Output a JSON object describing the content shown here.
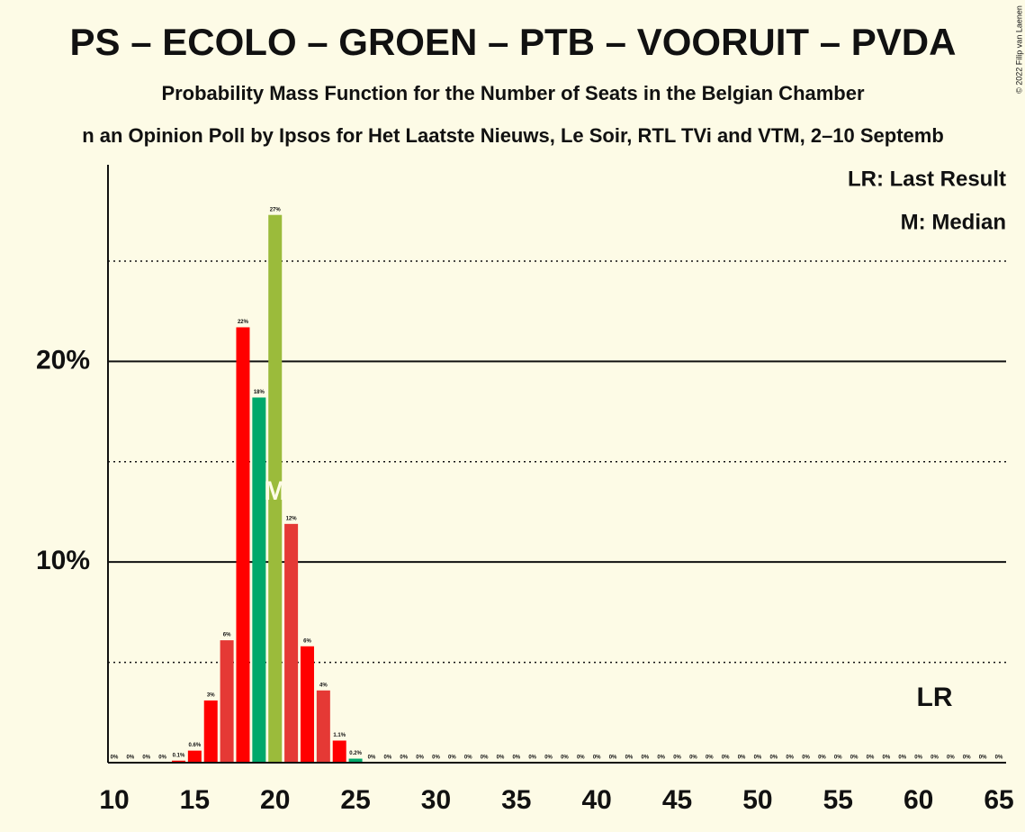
{
  "chart_data": {
    "type": "bar",
    "title": "PS – ECOLO – GROEN – PTB – VOORUIT – PVDA",
    "subtitle": "Probability Mass Function for the Number of Seats in the Belgian Chamber",
    "subtitle2": "n an Opinion Poll by Ipsos for Het Laatste Nieuws, Le Soir, RTL TVi and VTM, 2–10 Septemb",
    "copyright": "© 2022 Filip van Laenen",
    "legend": [
      "LR: Last Result",
      "M: Median"
    ],
    "x": [
      10,
      11,
      12,
      13,
      14,
      15,
      16,
      17,
      18,
      19,
      20,
      21,
      22,
      23,
      24,
      25,
      26,
      27,
      28,
      29,
      30,
      31,
      32,
      33,
      34,
      35,
      36,
      37,
      38,
      39,
      40,
      41,
      42,
      43,
      44,
      45,
      46,
      47,
      48,
      49,
      50,
      51,
      52,
      53,
      54,
      55,
      56,
      57,
      58,
      59,
      60,
      61,
      62,
      63,
      64,
      65
    ],
    "values": [
      0,
      0,
      0,
      0,
      0.1,
      0.6,
      3.1,
      6.1,
      21.7,
      18.2,
      27.3,
      11.9,
      5.8,
      3.6,
      1.1,
      0.2,
      0,
      0,
      0,
      0,
      0,
      0,
      0,
      0,
      0,
      0,
      0,
      0,
      0,
      0,
      0,
      0,
      0,
      0,
      0,
      0,
      0,
      0,
      0,
      0,
      0,
      0,
      0,
      0,
      0,
      0,
      0,
      0,
      0,
      0,
      0,
      0,
      0,
      0,
      0,
      0
    ],
    "value_labels": [
      "0%",
      "0%",
      "0%",
      "0%",
      "0.1%",
      "0.6%",
      "3%",
      "6%",
      "22%",
      "18%",
      "27%",
      "12%",
      "6%",
      "4%",
      "1.1%",
      "0.2%",
      "0%",
      "0%",
      "0%",
      "0%",
      "0%",
      "0%",
      "0%",
      "0%",
      "0%",
      "0%",
      "0%",
      "0%",
      "0%",
      "0%",
      "0%",
      "0%",
      "0%",
      "0%",
      "0%",
      "0%",
      "0%",
      "0%",
      "0%",
      "0%",
      "0%",
      "0%",
      "0%",
      "0%",
      "0%",
      "0%",
      "0%",
      "0%",
      "0%",
      "0%",
      "0%",
      "0%",
      "0%",
      "0%",
      "0%",
      "0%"
    ],
    "colors": [
      "#ff0000",
      "#e53935",
      "#ff0000",
      "#e53935",
      "#ff0000",
      "#ff0000",
      "#ff0000",
      "#e53935",
      "#ff0000",
      "#00a86b",
      "#9bbb3b",
      "#e53935",
      "#ff0000",
      "#e53935",
      "#ff0000",
      "#00a86b",
      "#ff0000",
      "#e53935",
      "#ff0000",
      "#e53935",
      "#ff0000",
      "#e53935",
      "#ff0000",
      "#e53935",
      "#ff0000",
      "#e53935",
      "#ff0000",
      "#e53935",
      "#ff0000",
      "#e53935",
      "#ff0000",
      "#e53935",
      "#ff0000",
      "#e53935",
      "#ff0000",
      "#e53935",
      "#ff0000",
      "#e53935",
      "#ff0000",
      "#e53935",
      "#ff0000",
      "#e53935",
      "#ff0000",
      "#e53935",
      "#ff0000",
      "#e53935",
      "#ff0000",
      "#e53935",
      "#ff0000",
      "#e53935",
      "#ff0000",
      "#e53935",
      "#ff0000",
      "#e53935",
      "#ff0000",
      "#e53935"
    ],
    "xlim": [
      10,
      65
    ],
    "xticks": [
      10,
      15,
      20,
      25,
      30,
      35,
      40,
      45,
      50,
      55,
      60,
      65
    ],
    "ylim": [
      0,
      29.8
    ],
    "yticks": [
      {
        "value": 10,
        "label": "10%"
      },
      {
        "value": 20,
        "label": "20%"
      }
    ],
    "minor_yticks": [
      5,
      15,
      25
    ],
    "median": {
      "label": "M",
      "x": 20
    },
    "last_result": {
      "label": "LR",
      "x": 61
    }
  }
}
